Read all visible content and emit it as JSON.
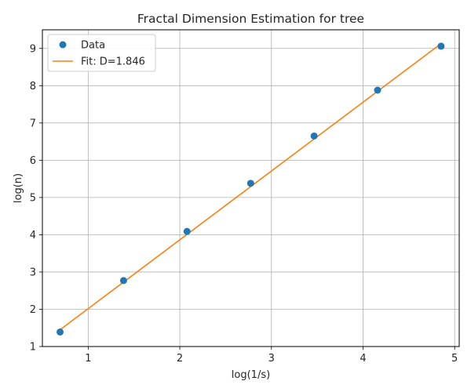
{
  "chart_data": {
    "type": "scatter",
    "title": "Fractal Dimension Estimation for tree",
    "xlabel": "log(1/s)",
    "ylabel": "log(n)",
    "xlim": [
      0.5,
      5.05
    ],
    "ylim": [
      1.0,
      9.5
    ],
    "xticks": [
      1,
      2,
      3,
      4,
      5
    ],
    "yticks": [
      1,
      2,
      3,
      4,
      5,
      6,
      7,
      8,
      9
    ],
    "grid": true,
    "legend_position": "top-left",
    "series": [
      {
        "name": "Data",
        "kind": "points",
        "color": "#1f77b4",
        "x": [
          0.693,
          1.386,
          2.079,
          2.773,
          3.466,
          4.159,
          4.852
        ],
        "y": [
          1.39,
          2.77,
          4.09,
          5.38,
          6.65,
          7.88,
          9.06
        ]
      },
      {
        "name": "Fit: D=1.846",
        "kind": "line",
        "color": "#ff7f0e",
        "x": [
          0.693,
          4.852
        ],
        "y": [
          1.45,
          9.13
        ]
      }
    ]
  }
}
